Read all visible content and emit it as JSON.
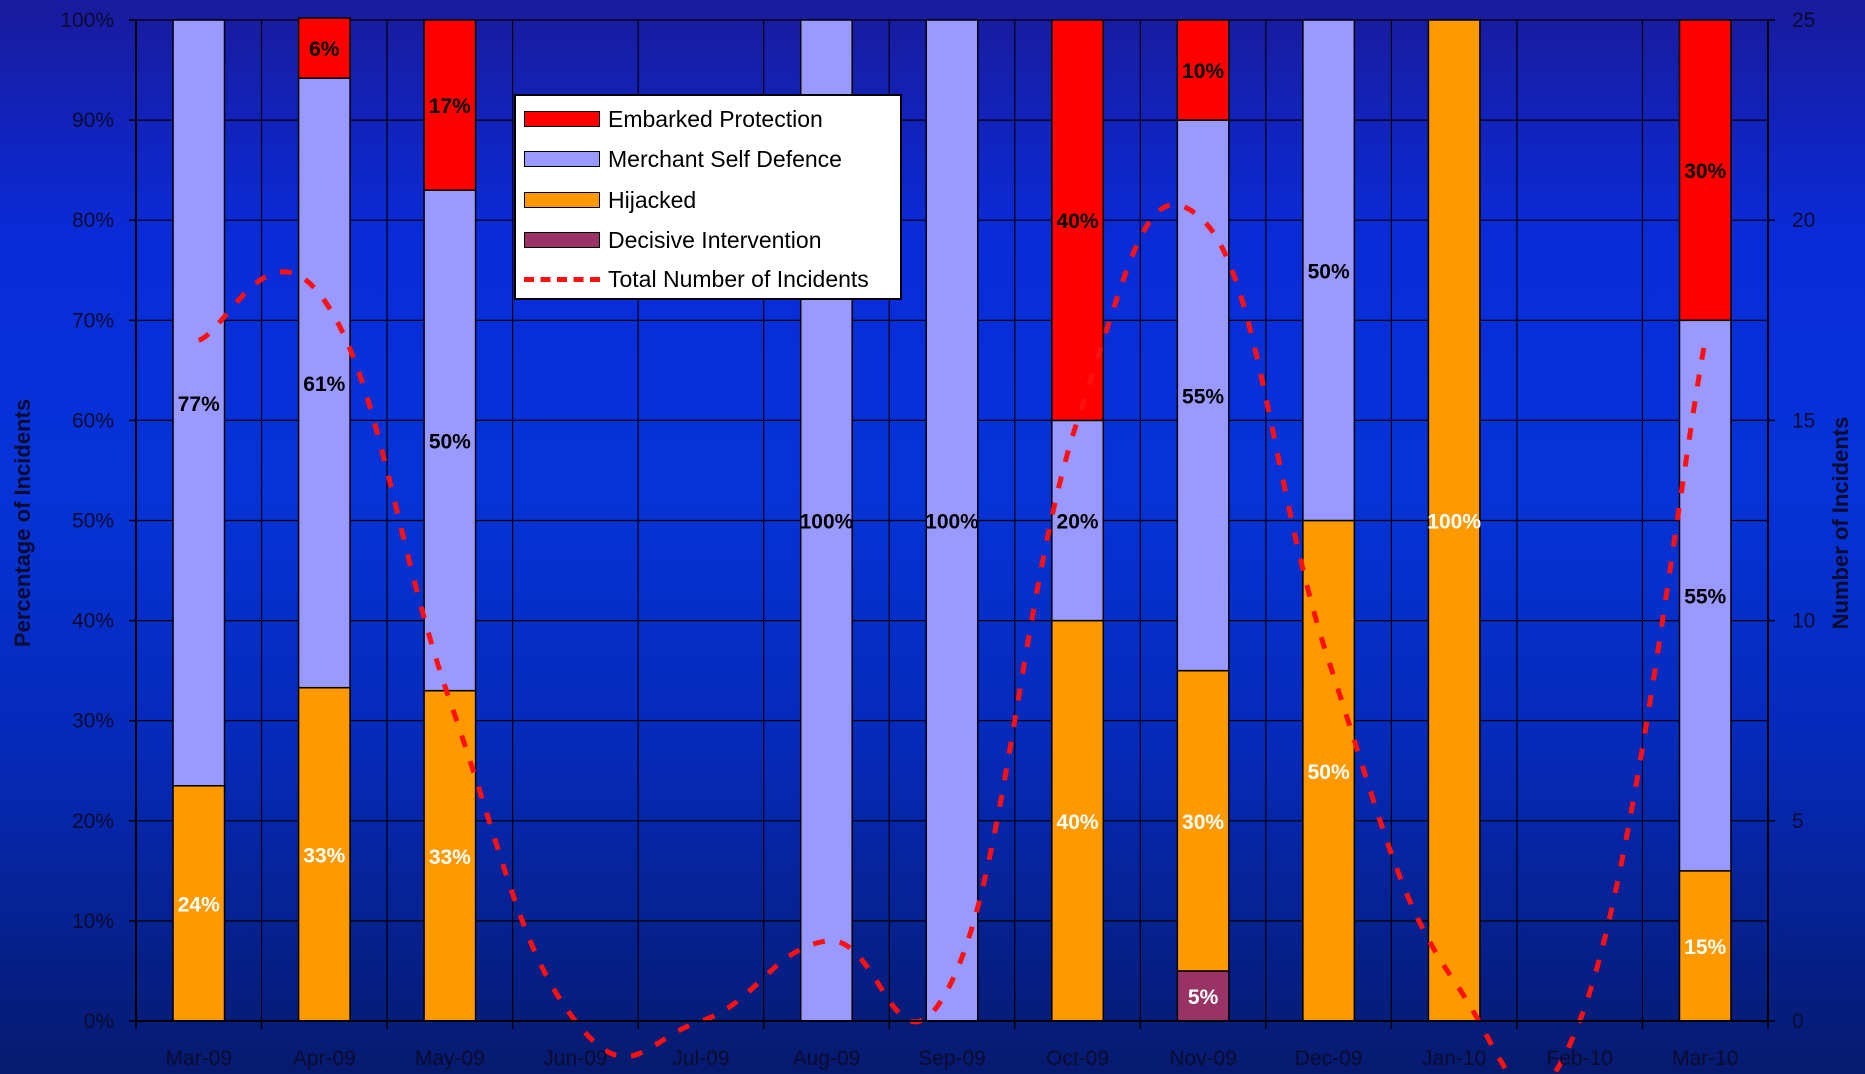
{
  "chart_data": {
    "type": "bar",
    "stacked": true,
    "categories": [
      "Mar-09",
      "Apr-09",
      "May-09",
      "Jun-09",
      "Jul-09",
      "Aug-09",
      "Sep-09",
      "Oct-09",
      "Nov-09",
      "Dec-09",
      "Jan-10",
      "Feb-10",
      "Mar-10"
    ],
    "series": [
      {
        "name": "Decisive Intervention",
        "color": "#993366",
        "values": [
          0,
          0,
          0,
          0,
          0,
          0,
          0,
          0,
          5,
          0,
          0,
          0,
          0
        ],
        "labels": [
          "",
          "",
          "",
          "",
          "",
          "",
          "",
          "",
          "5%",
          "",
          "",
          "",
          ""
        ]
      },
      {
        "name": "Hijacked",
        "color": "#ff9900",
        "values": [
          23.5,
          33.3,
          33,
          0,
          0,
          0,
          0,
          40,
          30,
          50,
          100,
          0,
          15
        ],
        "labels": [
          "24%",
          "33%",
          "33%",
          "",
          "",
          "",
          "",
          "40%",
          "30%",
          "50%",
          "100%",
          "",
          "15%"
        ]
      },
      {
        "name": "Merchant Self Defence",
        "color": "#9999ff",
        "values": [
          76.5,
          60.9,
          50,
          0,
          0,
          100,
          100,
          20,
          55,
          50,
          0,
          0,
          55
        ],
        "labels": [
          "77%",
          "61%",
          "50%",
          "",
          "",
          "100%",
          "100%",
          "20%",
          "55%",
          "50%",
          "",
          "",
          "55%"
        ]
      },
      {
        "name": "Embarked Protection",
        "color": "#ff0000",
        "values": [
          0,
          6,
          17,
          0,
          0,
          0,
          0,
          40,
          10,
          0,
          0,
          0,
          30
        ],
        "labels": [
          "",
          "6%",
          "17%",
          "",
          "",
          "",
          "",
          "40%",
          "10%",
          "",
          "",
          "",
          "30%"
        ]
      }
    ],
    "line_series": {
      "name": "Total Number of Incidents",
      "color": "#ff1010",
      "axis": "right",
      "values": [
        17,
        18,
        8,
        0,
        0,
        2,
        1,
        15,
        20,
        9,
        1,
        0,
        17
      ]
    },
    "ylabel": "Percentage of Incidents",
    "y2label": "Number of Incidents",
    "ylim": [
      0,
      100
    ],
    "y2lim": [
      0,
      25
    ],
    "yticks": [
      "0%",
      "10%",
      "20%",
      "30%",
      "40%",
      "50%",
      "60%",
      "70%",
      "80%",
      "90%",
      "100%"
    ],
    "y2ticks": [
      "0",
      "5",
      "10",
      "15",
      "20",
      "25"
    ],
    "grid": true,
    "legend_position": "top-center",
    "legend": [
      "Embarked Protection",
      "Merchant Self Defence",
      "Hijacked",
      "Decisive Intervention",
      "Total Number of Incidents"
    ]
  }
}
